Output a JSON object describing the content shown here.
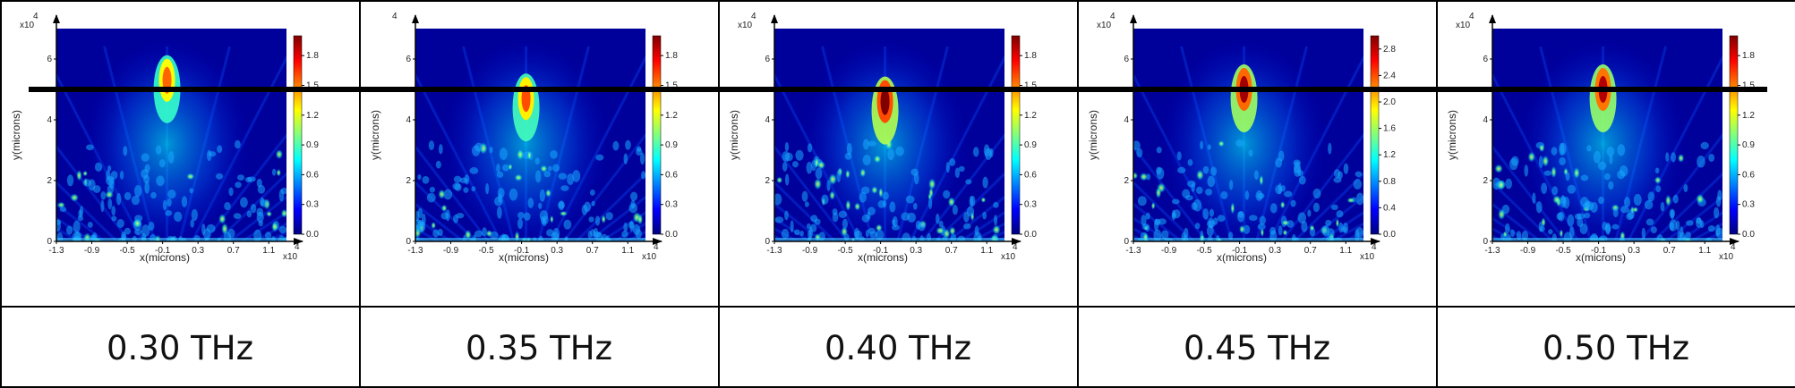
{
  "figure": {
    "reference_line_y": 5.0
  },
  "colorscale": [
    "#00007f",
    "#0000ff",
    "#007fff",
    "#00ffff",
    "#7fff7f",
    "#ffff00",
    "#ff7f00",
    "#ff0000",
    "#7f0000"
  ],
  "chart_data": [
    {
      "type": "heatmap",
      "caption": "0.30 THz",
      "xlabel": "x(microns)",
      "ylabel": "y(microns)",
      "x_ticks": [
        "-1.3",
        "-0.9",
        "-0.5",
        "-0.1",
        "0.3",
        "0.7",
        "1.1"
      ],
      "y_ticks": [
        "0",
        "2",
        "4",
        "6"
      ],
      "x_multiplier": "x10",
      "x_multiplier_exp": "4",
      "y_multiplier": "x10",
      "y_multiplier_exp": "4",
      "xlim": [
        -1.3,
        1.3
      ],
      "ylim": [
        0,
        7
      ],
      "colorbar_ticks": [
        "0.0",
        "0.3",
        "0.6",
        "0.9",
        "1.2",
        "1.5",
        "1.8"
      ],
      "colorbar_range": [
        0,
        2.0
      ],
      "focus": {
        "x": -0.05,
        "y": 5.3,
        "peak": 1.55
      }
    },
    {
      "type": "heatmap",
      "caption": "0.35 THz",
      "xlabel": "x(microns)",
      "ylabel": "y(microns)",
      "x_ticks": [
        "-1.3",
        "-0.9",
        "-0.5",
        "-0.1",
        "0.3",
        "0.7",
        "1.1"
      ],
      "y_ticks": [
        "0",
        "2",
        "4",
        "6"
      ],
      "x_multiplier": "x10",
      "x_multiplier_exp": "4",
      "y_multiplier": "",
      "y_multiplier_exp": "4",
      "xlim": [
        -1.3,
        1.3
      ],
      "ylim": [
        0,
        7
      ],
      "colorbar_ticks": [
        "0.0",
        "0.3",
        "0.6",
        "0.9",
        "1.2",
        "1.5",
        "1.8"
      ],
      "colorbar_range": [
        0,
        2.0
      ],
      "focus": {
        "x": -0.05,
        "y": 4.7,
        "peak": 1.6
      }
    },
    {
      "type": "heatmap",
      "caption": "0.40 THz",
      "xlabel": "x(microns)",
      "ylabel": "y(microns)",
      "x_ticks": [
        "-1.3",
        "-0.9",
        "-0.5",
        "-0.1",
        "0.3",
        "0.7",
        "1.1"
      ],
      "y_ticks": [
        "0",
        "2",
        "4",
        "6"
      ],
      "x_multiplier": "x10",
      "x_multiplier_exp": "4",
      "y_multiplier": "x10",
      "y_multiplier_exp": "4",
      "xlim": [
        -1.3,
        1.3
      ],
      "ylim": [
        0,
        7
      ],
      "colorbar_ticks": [
        "0.0",
        "0.3",
        "0.6",
        "0.9",
        "1.2",
        "1.5",
        "1.8"
      ],
      "colorbar_range": [
        0,
        2.0
      ],
      "focus": {
        "x": -0.05,
        "y": 4.6,
        "peak": 2.0
      }
    },
    {
      "type": "heatmap",
      "caption": "0.45 THz",
      "xlabel": "x(microns)",
      "ylabel": "y(microns)",
      "x_ticks": [
        "-1.3",
        "-0.9",
        "-0.5",
        "-0.1",
        "0.3",
        "0.7",
        "1.1"
      ],
      "y_ticks": [
        "0",
        "2",
        "4",
        "6"
      ],
      "x_multiplier": "x10",
      "x_multiplier_exp": "4",
      "y_multiplier": "x10",
      "y_multiplier_exp": "4",
      "xlim": [
        -1.3,
        1.3
      ],
      "ylim": [
        0,
        7
      ],
      "colorbar_ticks": [
        "0.0",
        "0.4",
        "0.8",
        "1.2",
        "1.6",
        "2.0",
        "2.4",
        "2.8"
      ],
      "colorbar_range": [
        0,
        3.0
      ],
      "focus": {
        "x": -0.05,
        "y": 5.0,
        "peak": 2.9
      }
    },
    {
      "type": "heatmap",
      "caption": "0.50 THz",
      "xlabel": "x(microns)",
      "ylabel": "y(microns)",
      "x_ticks": [
        "-1.3",
        "-0.9",
        "-0.5",
        "-0.1",
        "0.3",
        "0.7",
        "1.1"
      ],
      "y_ticks": [
        "0",
        "2",
        "4",
        "6"
      ],
      "x_multiplier": "x10",
      "x_multiplier_exp": "4",
      "y_multiplier": "x10",
      "y_multiplier_exp": "4",
      "xlim": [
        -1.3,
        1.3
      ],
      "ylim": [
        0,
        7
      ],
      "colorbar_ticks": [
        "0.0",
        "0.3",
        "0.6",
        "0.9",
        "1.2",
        "1.5",
        "1.8"
      ],
      "colorbar_range": [
        0,
        2.0
      ],
      "focus": {
        "x": -0.05,
        "y": 5.0,
        "peak": 1.9
      }
    }
  ]
}
